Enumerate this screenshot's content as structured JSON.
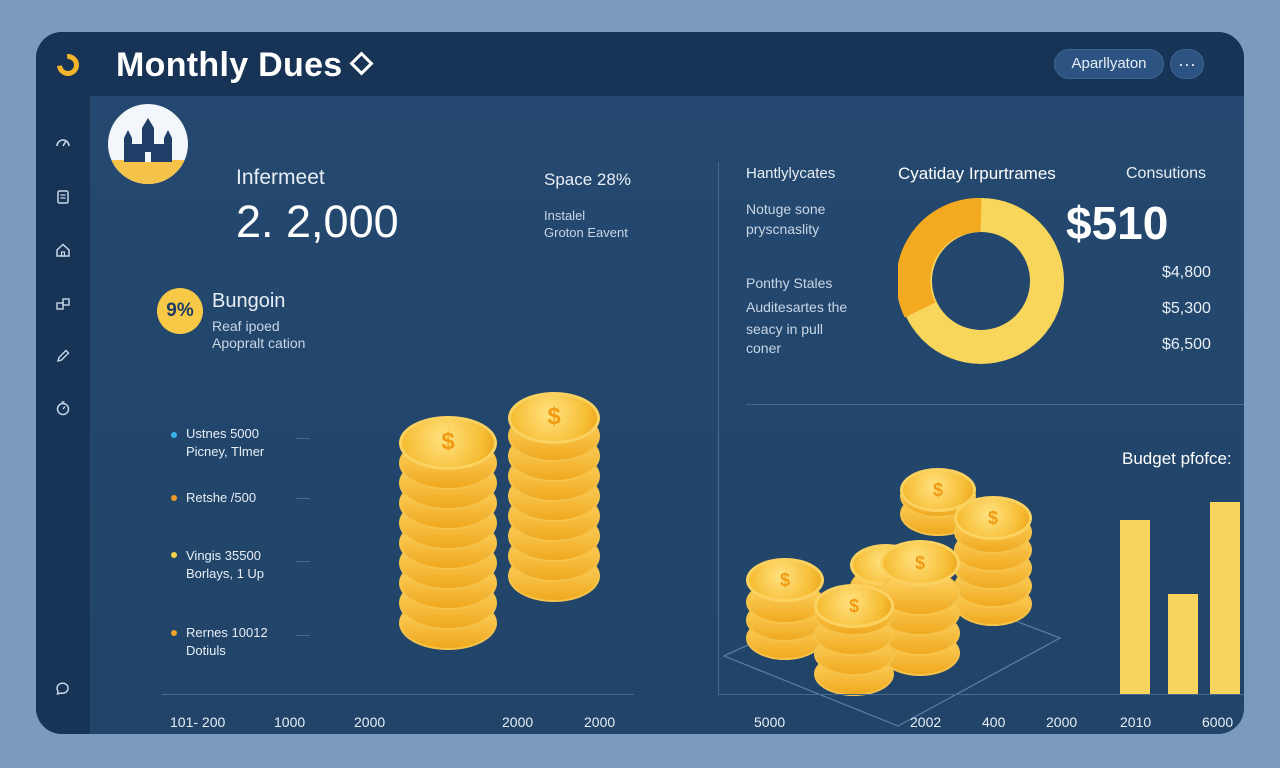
{
  "header": {
    "title": "Monthly Dues",
    "app_button": "Aparllyaton",
    "more_button": "···"
  },
  "sidebar": {
    "icons": [
      "gauge-icon",
      "receipt-icon",
      "home-icon",
      "stack-icon",
      "pencil-icon",
      "timer-icon",
      "chat-icon"
    ]
  },
  "summary": {
    "label": "Infermeet",
    "amount": "2. 2,000",
    "space_label": "Space 28%",
    "note_line1": "Instalel",
    "note_line2": "Groton Eavent"
  },
  "badge": {
    "value": "9%",
    "title": "Bungoin",
    "line1": "Reaf ipoed",
    "line2": "Apopralt cation"
  },
  "list_items": [
    {
      "line1": "Ustnes 5000",
      "line2": "Picney, Tlmer",
      "color": "#39b3ea"
    },
    {
      "line1": "Retshe /500",
      "line2": "",
      "color": "#f09a2a"
    },
    {
      "line1": "Vingis 35500",
      "line2": "Borlays, 1 Up",
      "color": "#f7d24a"
    },
    {
      "line1": "Rernes 10012",
      "line2": "Dotiuls",
      "color": "#f0a62a"
    }
  ],
  "left_axis": [
    "101- 200",
    "1000",
    "2000",
    "2000",
    "2000"
  ],
  "right_panel": {
    "col1_header": "Hantlylycates",
    "col2_header": "Cyatiday Irpurtrames",
    "col3_header": "Consutions",
    "note1_line1": "Notuge sone",
    "note1_line2": "pryscnaslity",
    "note2_line1": "Ponthy Stales",
    "note2_line2": "Auditesartes the",
    "note2_line3": "seacy in pull",
    "note2_line4": "coner",
    "big_value": "$510",
    "values": [
      "$4,800",
      "$5,300",
      "$6,500"
    ],
    "budget_label": "Budget pfofce:"
  },
  "right_axis": [
    "5000",
    "2002",
    "400",
    "2000",
    "2010",
    "6000"
  ],
  "colors": {
    "accent": "#f7c947",
    "panel": "#1e3d64",
    "ring_inner": "#f3a920",
    "ring_outer": "#f8d65c"
  },
  "chart_data": {
    "type": "bar",
    "title": "Budget pfofce:",
    "categories": [
      "",
      "",
      ""
    ],
    "values": [
      0.89,
      0.51,
      0.98
    ],
    "note": "relative bar heights as fraction of tallest axis extent"
  }
}
